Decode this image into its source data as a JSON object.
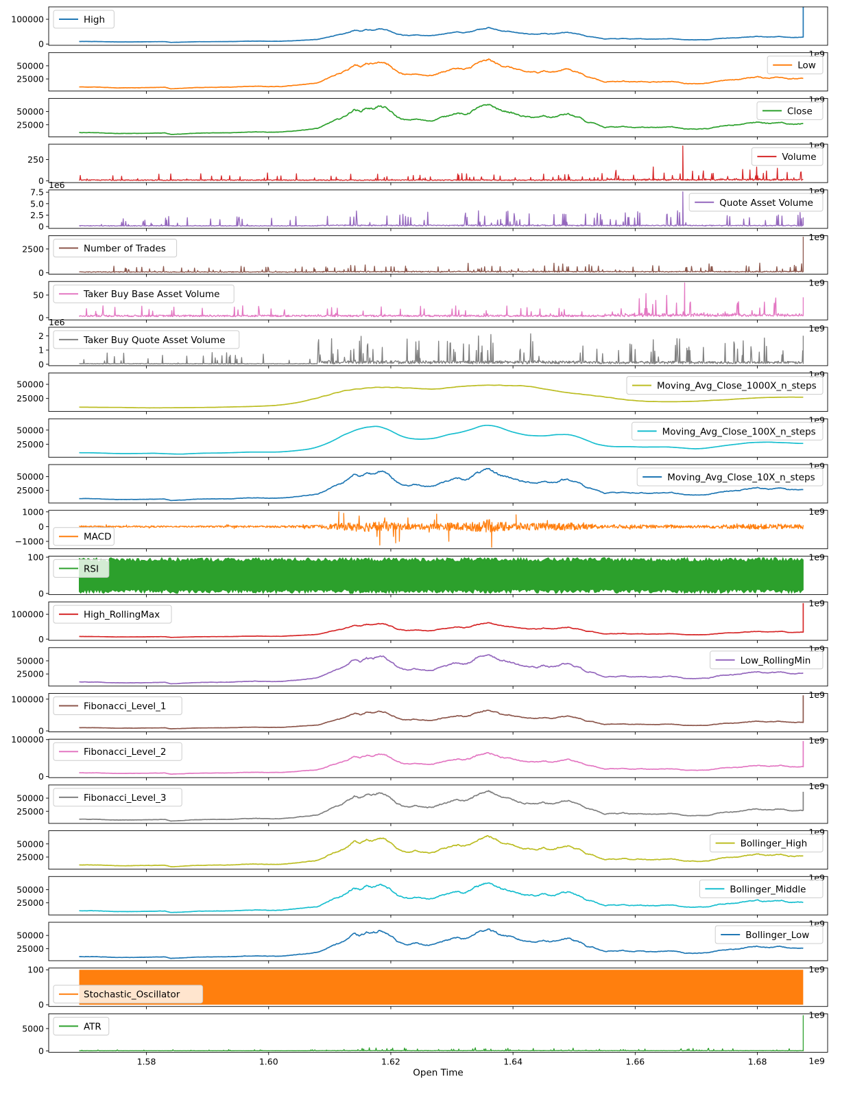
{
  "chart_data": {
    "type": "line",
    "xlabel": "Open Time",
    "xlim": [
      1564000000,
      1691500000
    ],
    "x_offset_label": "1e9",
    "x_ticks": [
      1580000000,
      1600000000,
      1620000000,
      1640000000,
      1660000000,
      1680000000
    ],
    "x_tick_labels": [
      "1.58",
      "1.60",
      "1.62",
      "1.64",
      "1.66",
      "1.68"
    ],
    "x_range": [
      1569000000,
      1687500000
    ],
    "price_profile": [
      [
        1569,
        10000
      ],
      [
        1572,
        9800
      ],
      [
        1575,
        8300
      ],
      [
        1578,
        8500
      ],
      [
        1581,
        9000
      ],
      [
        1583,
        9500
      ],
      [
        1584,
        6500
      ],
      [
        1586,
        7500
      ],
      [
        1588,
        9000
      ],
      [
        1590,
        9300
      ],
      [
        1592,
        9500
      ],
      [
        1594,
        9800
      ],
      [
        1596,
        11000
      ],
      [
        1598,
        11500
      ],
      [
        1600,
        10800
      ],
      [
        1602,
        11000
      ],
      [
        1604,
        13000
      ],
      [
        1606,
        15500
      ],
      [
        1608,
        18000
      ],
      [
        1609,
        23000
      ],
      [
        1610,
        29000
      ],
      [
        1611,
        34000
      ],
      [
        1612,
        38000
      ],
      [
        1613,
        45000
      ],
      [
        1614,
        54000
      ],
      [
        1615,
        50000
      ],
      [
        1616,
        57000
      ],
      [
        1617,
        55000
      ],
      [
        1618,
        60000
      ],
      [
        1619,
        58000
      ],
      [
        1620,
        50000
      ],
      [
        1621,
        40000
      ],
      [
        1622,
        35000
      ],
      [
        1623,
        33500
      ],
      [
        1624,
        36000
      ],
      [
        1625,
        34000
      ],
      [
        1626,
        32500
      ],
      [
        1627,
        33000
      ],
      [
        1628,
        38000
      ],
      [
        1629,
        41000
      ],
      [
        1630,
        45000
      ],
      [
        1631,
        47000
      ],
      [
        1632,
        44000
      ],
      [
        1633,
        48000
      ],
      [
        1634,
        56000
      ],
      [
        1635,
        60000
      ],
      [
        1636,
        64000
      ],
      [
        1637,
        58000
      ],
      [
        1638,
        52000
      ],
      [
        1639,
        50000
      ],
      [
        1640,
        47000
      ],
      [
        1641,
        43000
      ],
      [
        1642,
        40000
      ],
      [
        1643,
        39500
      ],
      [
        1644,
        38500
      ],
      [
        1645,
        42000
      ],
      [
        1646,
        39000
      ],
      [
        1647,
        40000
      ],
      [
        1648,
        44000
      ],
      [
        1649,
        45500
      ],
      [
        1650,
        41000
      ],
      [
        1651,
        38000
      ],
      [
        1652,
        30000
      ],
      [
        1653,
        28500
      ],
      [
        1654,
        24000
      ],
      [
        1655,
        19500
      ],
      [
        1656,
        21000
      ],
      [
        1657,
        20500
      ],
      [
        1658,
        22000
      ],
      [
        1659,
        20000
      ],
      [
        1660,
        20000
      ],
      [
        1661,
        20800
      ],
      [
        1662,
        19500
      ],
      [
        1663,
        19800
      ],
      [
        1664,
        20000
      ],
      [
        1665,
        20500
      ],
      [
        1666,
        21000
      ],
      [
        1667,
        19500
      ],
      [
        1668,
        17000
      ],
      [
        1669,
        16800
      ],
      [
        1670,
        16600
      ],
      [
        1671,
        17000
      ],
      [
        1672,
        17500
      ],
      [
        1673,
        20000
      ],
      [
        1674,
        22500
      ],
      [
        1675,
        23500
      ],
      [
        1676,
        24000
      ],
      [
        1677,
        25000
      ],
      [
        1678,
        27000
      ],
      [
        1679,
        28500
      ],
      [
        1680,
        30000
      ],
      [
        1681,
        28000
      ],
      [
        1682,
        27500
      ],
      [
        1683,
        29000
      ],
      [
        1684,
        29500
      ],
      [
        1685,
        26500
      ],
      [
        1686,
        26000
      ],
      [
        1687,
        26500
      ]
    ],
    "panels": [
      {
        "name": "High",
        "color": "#1f77b4",
        "ylim": [
          -5000,
          150000
        ],
        "y_ticks": [
          0,
          100000
        ],
        "y_tick_labels": [
          "0",
          "100000"
        ],
        "legend": "upper-left",
        "kind": "price",
        "scale": 1.03,
        "end_spike": 150000
      },
      {
        "name": "Low",
        "color": "#ff7f0e",
        "ylim": [
          2000,
          75000
        ],
        "y_ticks": [
          25000,
          50000
        ],
        "y_tick_labels": [
          "25000",
          "50000"
        ],
        "legend": "upper-right",
        "kind": "price",
        "scale": 0.97
      },
      {
        "name": "Close",
        "color": "#2ca02c",
        "ylim": [
          2000,
          75000
        ],
        "y_ticks": [
          25000,
          50000
        ],
        "y_tick_labels": [
          "25000",
          "50000"
        ],
        "legend": "upper-right",
        "kind": "price",
        "scale": 1.0
      },
      {
        "name": "Volume",
        "color": "#d62728",
        "ylim": [
          -20,
          430
        ],
        "y_ticks": [
          0,
          250
        ],
        "y_tick_labels": [
          "0",
          "250"
        ],
        "legend": "upper-right",
        "kind": "volume",
        "base": 12,
        "spike_max": 80,
        "late_boost": 120,
        "peak_x": 1667.8,
        "peak_val": 410
      },
      {
        "name": "Quote Asset Volume",
        "color": "#9467bd",
        "ylim": [
          -0.4,
          8.0
        ],
        "y_ticks": [
          0,
          2.5,
          5.0,
          7.5
        ],
        "y_tick_labels": [
          "0",
          "2.5",
          "5.0",
          "7.5"
        ],
        "multiplier": "1e6",
        "legend": "upper-right",
        "kind": "volume",
        "base": 0.2,
        "spike_max": 2.5,
        "mid_boost": 1.2,
        "peak_x": 1667.8,
        "peak_val": 7.6,
        "end_spike": 2.0
      },
      {
        "name": "Number of Trades",
        "color": "#8c564b",
        "ylim": [
          -150,
          3900
        ],
        "y_ticks": [
          0,
          2500
        ],
        "y_tick_labels": [
          "0",
          "2500"
        ],
        "legend": "upper-left",
        "kind": "volume",
        "base": 100,
        "spike_max": 600,
        "mid_boost": 500,
        "end_spike": 3800
      },
      {
        "name": "Taker Buy Base Asset Volume",
        "color": "#e377c2",
        "ylim": [
          -5,
          80
        ],
        "y_ticks": [
          0,
          50
        ],
        "y_tick_labels": [
          "0",
          "50"
        ],
        "legend": "upper-left",
        "kind": "volume",
        "base": 5,
        "spike_max": 25,
        "late_boost": 40,
        "peak_x": 1668.1,
        "peak_val": 77,
        "end_spike": 45
      },
      {
        "name": "Taker Buy Quote Asset Volume",
        "color": "#7f7f7f",
        "ylim": [
          -0.1,
          2.6
        ],
        "y_ticks": [
          0,
          1,
          2
        ],
        "y_tick_labels": [
          "0",
          "1",
          "2"
        ],
        "multiplier": "1e6",
        "legend": "upper-left",
        "kind": "volume",
        "base": 0.05,
        "spike_max": 0.8,
        "mid_boost": 1.4,
        "end_spike": 2.0
      },
      {
        "name": "Moving_Avg_Close_1000X_n_steps",
        "color": "#bcbd22",
        "ylim": [
          2000,
          70000
        ],
        "y_ticks": [
          25000,
          50000
        ],
        "y_tick_labels": [
          "25000",
          "50000"
        ],
        "legend": "upper-right",
        "kind": "smooth",
        "smooth": 7
      },
      {
        "name": "Moving_Avg_Close_100X_n_steps",
        "color": "#17becf",
        "ylim": [
          2000,
          70000
        ],
        "y_ticks": [
          25000,
          50000
        ],
        "y_tick_labels": [
          "25000",
          "50000"
        ],
        "legend": "upper-right",
        "kind": "smooth",
        "smooth": 2
      },
      {
        "name": "Moving_Avg_Close_10X_n_steps",
        "color": "#1f77b4",
        "ylim": [
          2000,
          72000
        ],
        "y_ticks": [
          25000,
          50000
        ],
        "y_tick_labels": [
          "25000",
          "50000"
        ],
        "legend": "upper-right",
        "kind": "price",
        "scale": 1.0
      },
      {
        "name": "MACD",
        "color": "#ff7f0e",
        "ylim": [
          -1500,
          1100
        ],
        "y_ticks": [
          -1000,
          0,
          1000
        ],
        "y_tick_labels": [
          "−1000",
          "0",
          "1000"
        ],
        "legend": "lower-left",
        "kind": "macd"
      },
      {
        "name": "RSI",
        "color": "#2ca02c",
        "ylim": [
          -3,
          103
        ],
        "y_ticks": [
          0,
          100
        ],
        "y_tick_labels": [
          "0",
          "100"
        ],
        "legend": "upper-left",
        "kind": "band",
        "lo": 2,
        "hi": 97
      },
      {
        "name": "High_RollingMax",
        "color": "#d62728",
        "ylim": [
          -5000,
          150000
        ],
        "y_ticks": [
          0,
          100000
        ],
        "y_tick_labels": [
          "0",
          "100000"
        ],
        "legend": "upper-left",
        "kind": "price",
        "scale": 1.04,
        "end_spike": 145000
      },
      {
        "name": "Low_RollingMin",
        "color": "#9467bd",
        "ylim": [
          2000,
          75000
        ],
        "y_ticks": [
          25000,
          50000
        ],
        "y_tick_labels": [
          "25000",
          "50000"
        ],
        "legend": "upper-right",
        "kind": "price",
        "scale": 0.98
      },
      {
        "name": "Fibonacci_Level_1",
        "color": "#8c564b",
        "ylim": [
          -3000,
          118000
        ],
        "y_ticks": [
          0,
          100000
        ],
        "y_tick_labels": [
          "0",
          "100000"
        ],
        "legend": "upper-left",
        "kind": "price",
        "scale": 1.02,
        "end_spike": 112000
      },
      {
        "name": "Fibonacci_Level_2",
        "color": "#e377c2",
        "ylim": [
          -3000,
          101000
        ],
        "y_ticks": [
          0,
          100000
        ],
        "y_tick_labels": [
          "0",
          "100000"
        ],
        "legend": "upper-left",
        "kind": "price",
        "scale": 1.01,
        "end_spike": 96000
      },
      {
        "name": "Fibonacci_Level_3",
        "color": "#7f7f7f",
        "ylim": [
          2000,
          75000
        ],
        "y_ticks": [
          25000,
          50000
        ],
        "y_tick_labels": [
          "25000",
          "50000"
        ],
        "legend": "upper-left",
        "kind": "price",
        "scale": 1.0,
        "end_spike": 62000
      },
      {
        "name": "Bollinger_High",
        "color": "#bcbd22",
        "ylim": [
          2000,
          75000
        ],
        "y_ticks": [
          25000,
          50000
        ],
        "y_tick_labels": [
          "25000",
          "50000"
        ],
        "legend": "upper-right",
        "kind": "price",
        "scale": 1.02
      },
      {
        "name": "Bollinger_Middle",
        "color": "#17becf",
        "ylim": [
          2000,
          75000
        ],
        "y_ticks": [
          25000,
          50000
        ],
        "y_tick_labels": [
          "25000",
          "50000"
        ],
        "legend": "upper-right",
        "kind": "price",
        "scale": 1.0
      },
      {
        "name": "Bollinger_Low",
        "color": "#1f77b4",
        "ylim": [
          2000,
          75000
        ],
        "y_ticks": [
          25000,
          50000
        ],
        "y_tick_labels": [
          "25000",
          "50000"
        ],
        "legend": "upper-right",
        "kind": "price",
        "scale": 0.98
      },
      {
        "name": "Stochastic_Oscillator",
        "color": "#ff7f0e",
        "ylim": [
          -5,
          105
        ],
        "y_ticks": [
          0,
          100
        ],
        "y_tick_labels": [
          "0",
          "100"
        ],
        "legend": "lower-left",
        "kind": "fill",
        "lo": 0,
        "hi": 100
      },
      {
        "name": "ATR",
        "color": "#2ca02c",
        "ylim": [
          -300,
          8300
        ],
        "y_ticks": [
          0,
          5000
        ],
        "y_tick_labels": [
          "0",
          "5000"
        ],
        "legend": "upper-left",
        "kind": "volume",
        "base": 40,
        "spike_max": 250,
        "mid_boost": 500,
        "end_spike": 8000
      }
    ]
  }
}
